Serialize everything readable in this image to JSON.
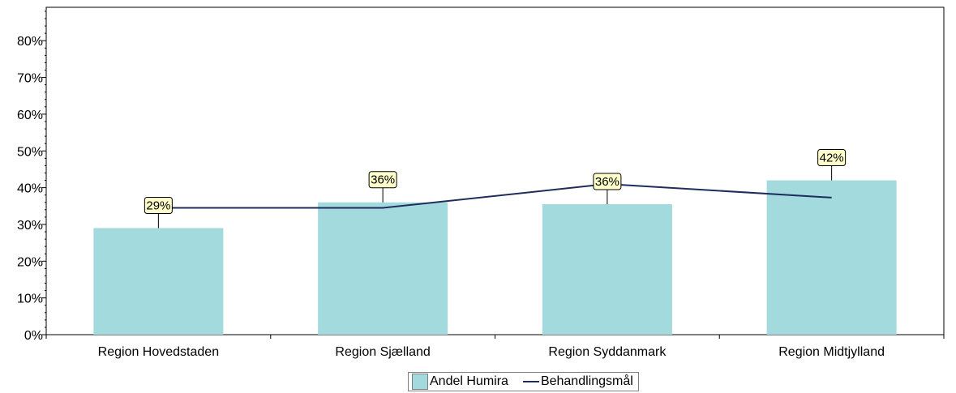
{
  "chart_data": {
    "type": "bar",
    "categories": [
      "Region Hovedstaden",
      "Region Sjælland",
      "Region Syddanmark",
      "Region Midtjylland"
    ],
    "series": [
      {
        "name": "Andel Humira",
        "kind": "bar",
        "values": [
          29,
          36,
          35.5,
          42
        ],
        "labels": [
          "29%",
          "36%",
          "36%",
          "42%"
        ],
        "color": "#a3dadd"
      },
      {
        "name": "Behandlingsmål",
        "kind": "line",
        "values": [
          34.5,
          34.5,
          41,
          37.3
        ],
        "color": "#1f2d5c"
      }
    ],
    "y_ticks": [
      "0%",
      "10%",
      "20%",
      "30%",
      "40%",
      "50%",
      "60%",
      "70%",
      "80%"
    ],
    "ylim": [
      0,
      90
    ],
    "xlabel": "",
    "ylabel": "",
    "title": "",
    "grid": false,
    "legend_position": "bottom-center"
  }
}
